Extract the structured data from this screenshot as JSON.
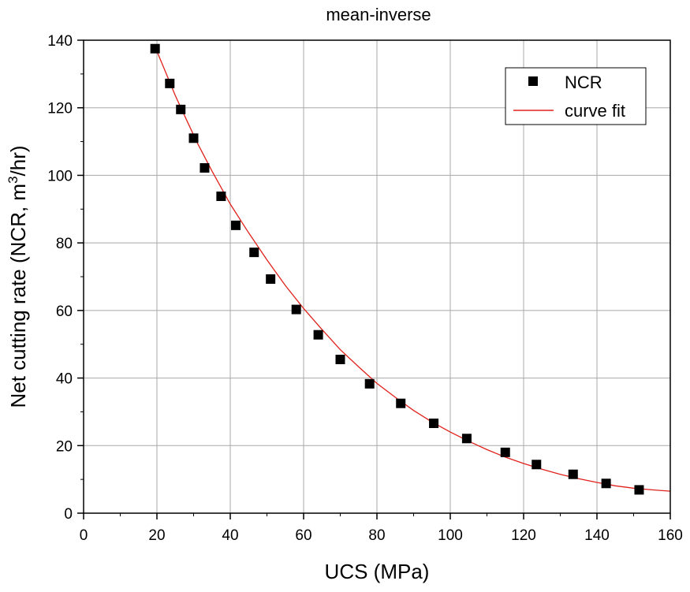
{
  "chart_data": {
    "type": "scatter",
    "title": "mean-inverse",
    "xlabel": "UCS (MPa)",
    "ylabel_main": "Net cutting rate (NCR, m",
    "ylabel_sup": "3",
    "ylabel_tail": "/hr)",
    "xlim": [
      0,
      160
    ],
    "ylim": [
      0,
      140
    ],
    "xticks": [
      0,
      20,
      40,
      60,
      80,
      100,
      120,
      140,
      160
    ],
    "yticks": [
      0,
      20,
      40,
      60,
      80,
      100,
      120,
      140
    ],
    "grid": true,
    "legend_position": "top-right",
    "series": [
      {
        "name": "NCR",
        "kind": "markers",
        "marker": "square",
        "color": "#000000",
        "x": [
          19.5,
          23.5,
          26.5,
          30,
          33,
          37.5,
          41.5,
          46.5,
          51,
          58,
          64,
          70,
          78,
          86.5,
          95.5,
          104.5,
          115,
          123.5,
          133.5,
          142.5,
          151.5
        ],
        "y": [
          137.5,
          127.2,
          119.5,
          111,
          102.2,
          93.8,
          85.2,
          77.2,
          69.3,
          60.3,
          52.8,
          45.5,
          38.3,
          32.5,
          26.6,
          22.1,
          18,
          14.4,
          11.5,
          8.8,
          6.9
        ]
      },
      {
        "name": "curve fit",
        "kind": "line",
        "color": "#e0211b",
        "x": [
          19.5,
          22,
          25,
          28,
          31,
          35,
          40,
          45,
          50,
          55,
          60,
          65,
          70,
          75,
          80,
          85,
          90,
          95,
          100,
          105,
          110,
          115,
          120,
          125,
          130,
          135,
          140,
          145,
          150,
          155,
          160
        ],
        "y": [
          138,
          131.5,
          123.6,
          116.6,
          109.6,
          101.3,
          91.5,
          83,
          75,
          67.4,
          60.6,
          54.4,
          48.4,
          43.3,
          38.4,
          34.3,
          30.4,
          27,
          24,
          21.3,
          18.8,
          16.6,
          14.7,
          13,
          11.5,
          10.2,
          9.1,
          8.1,
          7.4,
          6.9,
          6.5
        ]
      }
    ]
  }
}
